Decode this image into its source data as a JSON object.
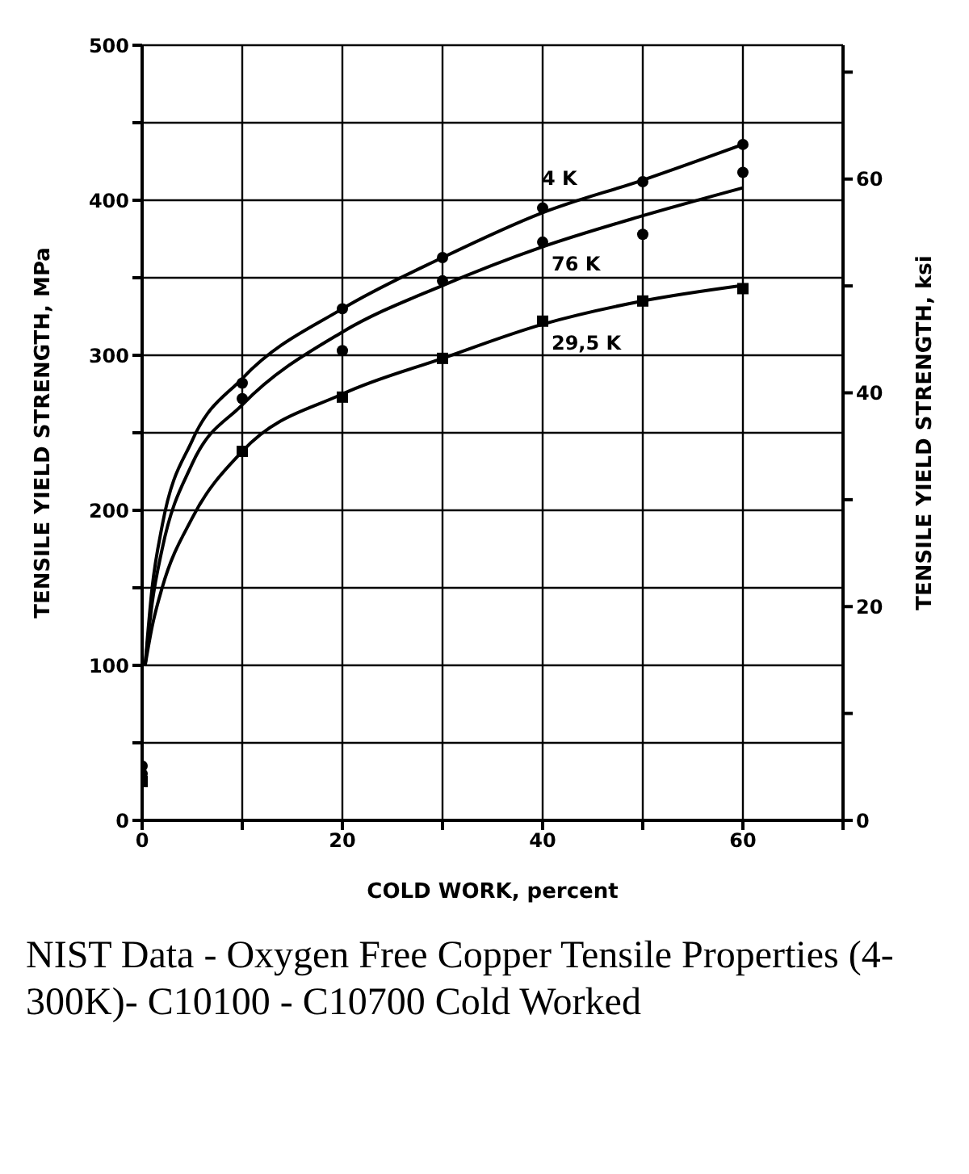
{
  "chart_data": {
    "type": "scatter",
    "xlabel": "COLD WORK, percent",
    "ylabel": "TENSILE YIELD STRENGTH, MPa",
    "y2label": "TENSILE YIELD STRENGTH, ksi",
    "xlim": [
      0,
      70
    ],
    "xticks": [
      0,
      {
        "value": 10,
        "label": null
      },
      20,
      {
        "value": 30,
        "label": null
      },
      40,
      {
        "value": 50,
        "label": null
      },
      60,
      {
        "value": 70,
        "label": null
      }
    ],
    "ylim": [
      0,
      500
    ],
    "yticks": [
      0,
      {
        "value": 50,
        "label": null
      },
      100,
      {
        "value": 150,
        "label": null
      },
      200,
      {
        "value": 250,
        "label": null
      },
      300,
      {
        "value": 350,
        "label": null
      },
      400,
      {
        "value": 450,
        "label": null
      },
      500
    ],
    "y2lim": [
      0,
      72.52
    ],
    "y2ticks": [
      0,
      {
        "value": 10,
        "label": null
      },
      20,
      {
        "value": 30,
        "label": null
      },
      40,
      {
        "value": 50,
        "label": null
      },
      60,
      {
        "value": 70,
        "label": null
      }
    ],
    "grid": true,
    "legend": false,
    "series": [
      {
        "name": "4 K",
        "marker": "circle",
        "color": "#000000",
        "x": [
          0,
          10,
          20,
          30,
          40,
          50,
          60
        ],
        "values": [
          35,
          282,
          330,
          363,
          395,
          412,
          436
        ]
      },
      {
        "name": "76 K",
        "marker": "circle",
        "color": "#000000",
        "x": [
          0,
          10,
          20,
          30,
          40,
          50,
          60
        ],
        "values": [
          30,
          272,
          303,
          348,
          373,
          378,
          418
        ]
      },
      {
        "name": "29,5 K",
        "marker": "square",
        "color": "#000000",
        "x": [
          0,
          10,
          20,
          30,
          40,
          50,
          60
        ],
        "values": [
          25,
          238,
          273,
          298,
          322,
          335,
          343
        ]
      },
      {
        "type": "line",
        "color": "#000000",
        "x": [
          0.3,
          1,
          2,
          5,
          10,
          20,
          30,
          40,
          50,
          60
        ],
        "values": [
          100,
          150,
          190,
          245,
          285,
          330,
          363,
          392,
          413,
          436
        ]
      },
      {
        "type": "line",
        "color": "#000000",
        "x": [
          0.3,
          1,
          2,
          5,
          10,
          20,
          30,
          40,
          50,
          60
        ],
        "values": [
          100,
          140,
          175,
          230,
          268,
          315,
          345,
          370,
          390,
          408
        ]
      },
      {
        "type": "line",
        "color": "#000000",
        "x": [
          0.3,
          1,
          2,
          5,
          10,
          20,
          30,
          40,
          50,
          60
        ],
        "values": [
          100,
          125,
          150,
          195,
          238,
          275,
          298,
          320,
          335,
          345
        ]
      }
    ],
    "annotations": [
      "NIST Data - Oxygen Free Copper Tensile Properties (4-300K)- C10100 - C10700 Cold Worked"
    ]
  }
}
